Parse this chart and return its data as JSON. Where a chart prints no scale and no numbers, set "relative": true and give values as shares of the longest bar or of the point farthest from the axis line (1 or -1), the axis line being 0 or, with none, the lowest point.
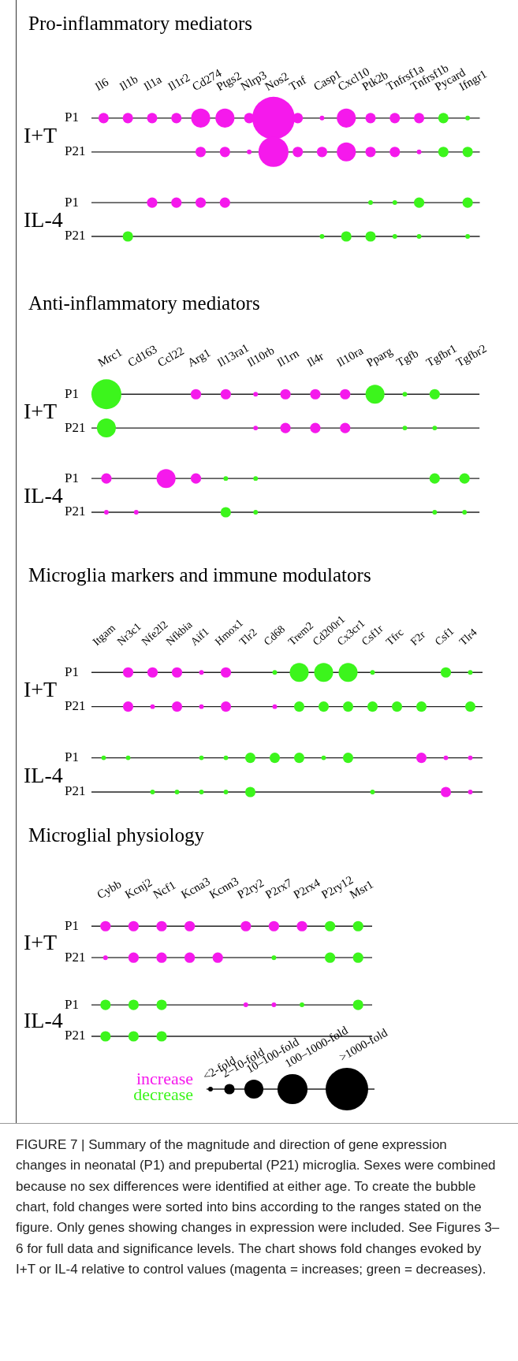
{
  "chart_data": [
    {
      "type": "bubble",
      "title": "Pro-inflammatory mediators",
      "relative": true,
      "categories": [
        "Il6",
        "Il1b",
        "Il1a",
        "Il1r2",
        "Cd274",
        "Ptgs2",
        "Nlrp3",
        "Nos2",
        "Tnf",
        "Casp1",
        "Cxcl10",
        "Ptk2b",
        "Tnfrsf1a",
        "Tnfrsf1b",
        "Pycard",
        "Ifngr1"
      ],
      "series": [
        {
          "color": "#f519ec",
          "x": [
            "Il6",
            "Il1b",
            "Il1a",
            "Il1r2",
            "Cd274",
            "Ptgs2",
            "Nlrp3",
            "Nos2",
            "Tnf",
            "Casp1",
            "Cxcl10",
            "Ptk2b",
            "Tnfrsf1a",
            "Tnfrsf1b",
            "Cd274",
            "Ptgs2",
            "Nlrp3",
            "Nos2",
            "Tnf",
            "Casp1",
            "Cxcl10",
            "Ptk2b",
            "Tnfrsf1a",
            "Tnfrsf1b",
            "Il1a",
            "Il1r2",
            "Cd274",
            "Ptgs2"
          ],
          "values": [
            1,
            1,
            1,
            1,
            1,
            1,
            1,
            1,
            1,
            1,
            1,
            1,
            1,
            1,
            0.714,
            0.714,
            0.714,
            0.714,
            0.714,
            0.714,
            0.714,
            0.714,
            0.714,
            0.714,
            0.286,
            0.286,
            0.286,
            0.286
          ],
          "sizes": [
            0.06,
            0.06,
            0.06,
            0.06,
            0.2,
            0.2,
            0.06,
            1,
            0.06,
            0.012,
            0.2,
            0.06,
            0.06,
            0.06,
            0.06,
            0.06,
            0.012,
            0.5,
            0.06,
            0.06,
            0.2,
            0.06,
            0.06,
            0.012,
            0.06,
            0.06,
            0.06,
            0.06
          ]
        },
        {
          "color": "#3cf51c",
          "x": [
            "Pycard",
            "Ifngr1",
            "Pycard",
            "Ifngr1",
            "Ptk2b",
            "Tnfrsf1a",
            "Tnfrsf1b",
            "Ifngr1",
            "Il1b",
            "Casp1",
            "Cxcl10",
            "Ptk2b",
            "Tnfrsf1a",
            "Tnfrsf1b",
            "Ifngr1"
          ],
          "values": [
            1,
            1,
            0.714,
            0.714,
            0.286,
            0.286,
            0.286,
            0.286,
            0,
            0,
            0,
            0,
            0,
            0,
            0
          ],
          "sizes": [
            0.06,
            0.012,
            0.06,
            0.06,
            0.012,
            0.012,
            0.06,
            0.06,
            0.06,
            0.012,
            0.06,
            0.06,
            0.012,
            0.012,
            0.012
          ]
        }
      ],
      "ref_lines": [
        {
          "axis": "y",
          "value": 1,
          "label": "P1",
          "color": "#222222"
        },
        {
          "axis": "y",
          "value": 0.714,
          "label": "P21",
          "color": "#222222"
        },
        {
          "axis": "y",
          "value": 0.286,
          "label": "P1",
          "color": "#222222"
        },
        {
          "axis": "y",
          "value": 0,
          "label": "P21",
          "color": "#222222"
        }
      ],
      "annotations": [
        "I+T",
        "IL-4"
      ]
    },
    {
      "type": "bubble",
      "title": "Anti-inflammatory mediators",
      "relative": true,
      "categories": [
        "Mrc1",
        "Cd163",
        "Ccl22",
        "Arg1",
        "Il13ra1",
        "Il10rb",
        "Il1rn",
        "Il4r",
        "Il10ra",
        "Pparg",
        "Tgfb",
        "Tgfbr1",
        "Tgfbr2"
      ],
      "series": [
        {
          "color": "#f519ec",
          "x": [
            "Arg1",
            "Il13ra1",
            "Il10rb",
            "Il1rn",
            "Il4r",
            "Il10ra",
            "Il10rb",
            "Il1rn",
            "Il4r",
            "Il10ra",
            "Mrc1",
            "Ccl22",
            "Arg1",
            "Mrc1",
            "Cd163"
          ],
          "values": [
            1,
            1,
            1,
            1,
            1,
            1,
            0.714,
            0.714,
            0.714,
            0.714,
            0.286,
            0.286,
            0.286,
            0,
            0
          ],
          "sizes": [
            0.12,
            0.12,
            0.024,
            0.12,
            0.12,
            0.12,
            0.024,
            0.12,
            0.12,
            0.12,
            0.12,
            0.4,
            0.12,
            0.024,
            0.024
          ]
        },
        {
          "color": "#3cf51c",
          "x": [
            "Mrc1",
            "Pparg",
            "Tgfb",
            "Tgfbr1",
            "Mrc1",
            "Tgfb",
            "Tgfbr1",
            "Il13ra1",
            "Il10rb",
            "Tgfbr1",
            "Tgfbr2",
            "Il13ra1",
            "Il10rb",
            "Tgfbr1",
            "Tgfbr2"
          ],
          "values": [
            1,
            1,
            1,
            1,
            0.714,
            0.714,
            0.714,
            0.286,
            0.286,
            0.286,
            0.286,
            0,
            0,
            0,
            0
          ],
          "sizes": [
            1,
            0.4,
            0.024,
            0.12,
            0.4,
            0.024,
            0.024,
            0.024,
            0.024,
            0.12,
            0.12,
            0.12,
            0.024,
            0.024,
            0.024
          ]
        }
      ],
      "ref_lines": [
        {
          "axis": "y",
          "value": 1,
          "label": "P1",
          "color": "#222222"
        },
        {
          "axis": "y",
          "value": 0.714,
          "label": "P21",
          "color": "#222222"
        },
        {
          "axis": "y",
          "value": 0.286,
          "label": "P1",
          "color": "#222222"
        },
        {
          "axis": "y",
          "value": 0,
          "label": "P21",
          "color": "#222222"
        }
      ],
      "annotations": [
        "I+T",
        "IL-4"
      ]
    },
    {
      "type": "bubble",
      "title": "Microglia markers and immune modulators",
      "relative": true,
      "categories": [
        "Itgam",
        "Nr3c1",
        "Nfe2l2",
        "Nfkbia",
        "Aif1",
        "Hmox1",
        "Tlr2",
        "Cd68",
        "Trem2",
        "Cd200r1",
        "Cx3cr1",
        "Csf1r",
        "Tfrc",
        "F2r",
        "Csf1",
        "Tlr4"
      ],
      "series": [
        {
          "color": "#f519ec",
          "x": [
            "Nr3c1",
            "Nfe2l2",
            "Nfkbia",
            "Aif1",
            "Hmox1",
            "Nr3c1",
            "Nfe2l2",
            "Nfkbia",
            "Aif1",
            "Hmox1",
            "Cd68",
            "F2r",
            "Csf1",
            "Tlr4",
            "Csf1",
            "Tlr4"
          ],
          "values": [
            1,
            1,
            1,
            1,
            1,
            0.714,
            0.714,
            0.714,
            0.714,
            0.714,
            0.714,
            0.286,
            0.286,
            0.286,
            0,
            0
          ],
          "sizes": [
            0.3,
            0.3,
            0.3,
            0.06,
            0.3,
            0.3,
            0.06,
            0.3,
            0.06,
            0.3,
            0.06,
            0.3,
            0.06,
            0.06,
            0.3,
            0.06
          ]
        },
        {
          "color": "#3cf51c",
          "x": [
            "Cd68",
            "Trem2",
            "Cd200r1",
            "Cx3cr1",
            "Csf1r",
            "Csf1",
            "Tlr4",
            "Trem2",
            "Cd200r1",
            "Cx3cr1",
            "Csf1r",
            "Tfrc",
            "F2r",
            "Tlr4",
            "Itgam",
            "Nr3c1",
            "Aif1",
            "Hmox1",
            "Tlr2",
            "Cd68",
            "Trem2",
            "Cd200r1",
            "Cx3cr1",
            "Nfe2l2",
            "Nfkbia",
            "Aif1",
            "Hmox1",
            "Tlr2",
            "Csf1r"
          ],
          "values": [
            1,
            1,
            1,
            1,
            1,
            1,
            1,
            0.714,
            0.714,
            0.714,
            0.714,
            0.714,
            0.714,
            0.714,
            0.286,
            0.286,
            0.286,
            0.286,
            0.286,
            0.286,
            0.286,
            0.286,
            0.286,
            0,
            0,
            0,
            0,
            0,
            0
          ],
          "sizes": [
            0.06,
            1,
            1,
            1,
            0.06,
            0.3,
            0.06,
            0.3,
            0.3,
            0.3,
            0.3,
            0.3,
            0.3,
            0.3,
            0.06,
            0.06,
            0.06,
            0.06,
            0.3,
            0.3,
            0.3,
            0.06,
            0.3,
            0.06,
            0.06,
            0.06,
            0.06,
            0.3,
            0.06
          ]
        }
      ],
      "ref_lines": [
        {
          "axis": "y",
          "value": 1,
          "label": "P1",
          "color": "#222222"
        },
        {
          "axis": "y",
          "value": 0.714,
          "label": "P21",
          "color": "#222222"
        },
        {
          "axis": "y",
          "value": 0.286,
          "label": "P1",
          "color": "#222222"
        },
        {
          "axis": "y",
          "value": 0,
          "label": "P21",
          "color": "#222222"
        }
      ],
      "annotations": [
        "I+T",
        "IL-4"
      ]
    },
    {
      "type": "bubble",
      "title": "Microglial physiology",
      "relative": true,
      "categories": [
        "Cybb",
        "Kcnj2",
        "Ncf1",
        "Kcna3",
        "Kcnn3",
        "P2ry2",
        "P2rx7",
        "P2rx4",
        "P2ry12",
        "Msr1"
      ],
      "series": [
        {
          "name": "increase",
          "color": "#f519ec",
          "x": [
            "Cybb",
            "Kcnj2",
            "Ncf1",
            "Kcna3",
            "P2ry2",
            "P2rx7",
            "P2rx4",
            "Cybb",
            "Kcnj2",
            "Ncf1",
            "Kcna3",
            "Kcnn3",
            "P2ry2",
            "P2rx7"
          ],
          "values": [
            1,
            1,
            1,
            1,
            1,
            1,
            1,
            0.714,
            0.714,
            0.714,
            0.714,
            0.714,
            0.286,
            0.286
          ],
          "sizes": [
            0.06,
            0.06,
            0.06,
            0.06,
            0.06,
            0.06,
            0.06,
            0.012,
            0.06,
            0.06,
            0.06,
            0.06,
            0.012,
            0.012
          ]
        },
        {
          "name": "decrease",
          "color": "#3cf51c",
          "x": [
            "P2ry12",
            "Msr1",
            "P2rx7",
            "P2ry12",
            "Msr1",
            "Cybb",
            "Kcnj2",
            "Ncf1",
            "P2rx4",
            "Msr1",
            "Cybb",
            "Kcnj2",
            "Ncf1"
          ],
          "values": [
            1,
            1,
            0.714,
            0.714,
            0.714,
            0.286,
            0.286,
            0.286,
            0.286,
            0.286,
            0,
            0,
            0
          ],
          "sizes": [
            0.06,
            0.06,
            0.012,
            0.06,
            0.06,
            0.06,
            0.06,
            0.06,
            0.012,
            0.06,
            0.06,
            0.06,
            0.06
          ]
        }
      ],
      "size_legend": [
        {
          "value": 0.012,
          "label": "<2-fold"
        },
        {
          "value": 0.06,
          "label": "2–10-fold"
        },
        {
          "value": 0.2,
          "label": "10–100-fold"
        },
        {
          "value": 0.5,
          "label": "100–1000-fold"
        },
        {
          "value": 1,
          "label": ">1000-fold"
        }
      ],
      "legend": "bottom",
      "ref_lines": [
        {
          "axis": "y",
          "value": 1,
          "label": "P1",
          "color": "#222222"
        },
        {
          "axis": "y",
          "value": 0.714,
          "label": "P21",
          "color": "#222222"
        },
        {
          "axis": "y",
          "value": 0.286,
          "label": "P1",
          "color": "#222222"
        },
        {
          "axis": "y",
          "value": 0,
          "label": "P21",
          "color": "#222222"
        }
      ],
      "annotations": [
        "I+T",
        "IL-4",
        "FIGURE 7 | Summary of the magnitude and direction of gene expression changes in neonatal (P1) and prepubertal (P21) microglia. Sexes were combined because no sex differences were identified at either age. To create the bubble chart, fold changes were sorted into bins according to the ranges stated on the figure. Only genes showing changes in expression were included. See Figures 3–6 for full data and significance levels. The chart shows fold changes evoked by I+T or IL-4 relative to control values (magenta = increases; green = decreases)."
      ]
    }
  ]
}
